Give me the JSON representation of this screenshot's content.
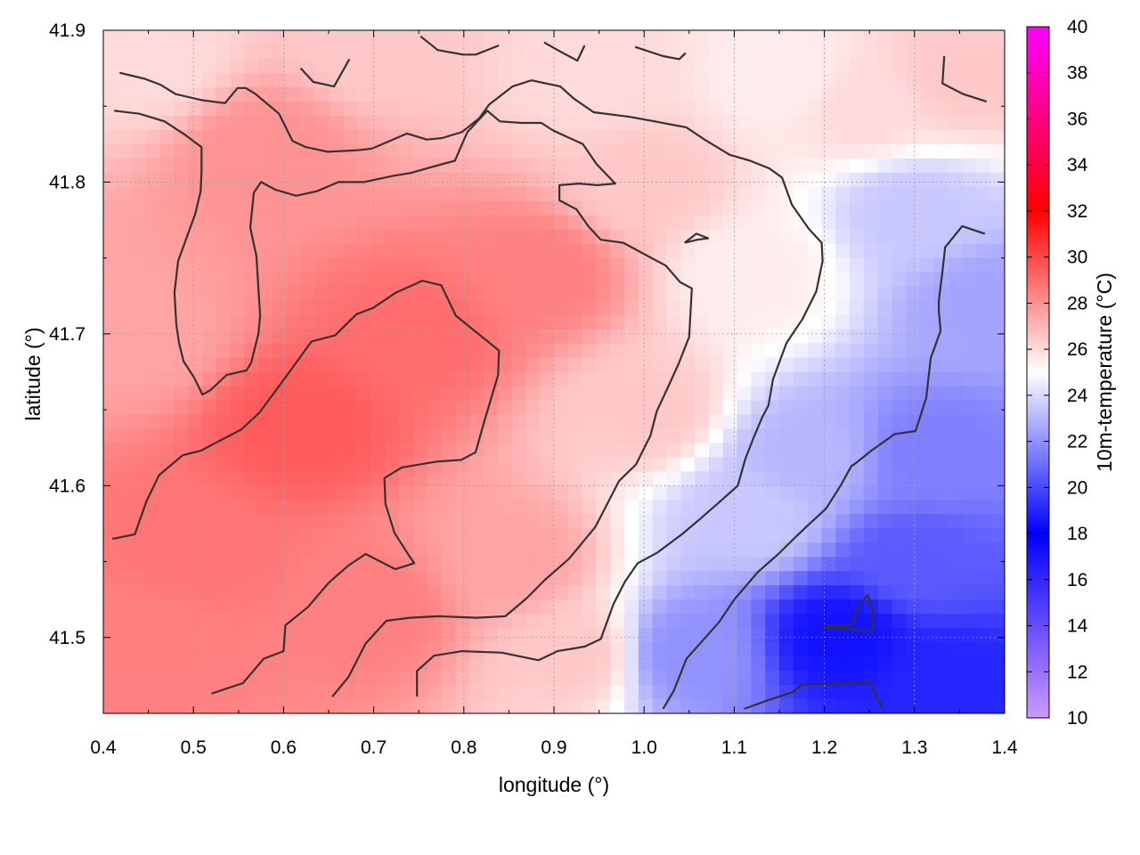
{
  "chart_data": {
    "type": "heatmap",
    "title": "",
    "xlabel": "longitude (°)",
    "ylabel": "latitude (°)",
    "colorbar_label": "10m-temperature (°C)",
    "xlim": [
      0.4,
      1.4
    ],
    "ylim": [
      41.45,
      41.9
    ],
    "x_ticks": [
      "0.4",
      "0.5",
      "0.6",
      "0.7",
      "0.8",
      "0.9",
      "1.0",
      "1.1",
      "1.2",
      "1.3",
      "1.4"
    ],
    "y_ticks": [
      "41.5",
      "41.6",
      "41.7",
      "41.8",
      "41.9"
    ],
    "colorbar_range": [
      10,
      40
    ],
    "colorbar_ticks": [
      "10",
      "12",
      "14",
      "16",
      "18",
      "20",
      "22",
      "24",
      "26",
      "28",
      "30",
      "32",
      "34",
      "36",
      "38",
      "40"
    ],
    "grid": true,
    "colormap_stops": [
      {
        "t": 10,
        "color": "#cc99ff"
      },
      {
        "t": 18,
        "color": "#0000ff"
      },
      {
        "t": 25,
        "color": "#ffffff"
      },
      {
        "t": 32,
        "color": "#ff0000"
      },
      {
        "t": 40,
        "color": "#ff00ff"
      }
    ],
    "field_anchors": [
      {
        "x": 0.62,
        "y": 41.64,
        "t": 29.5
      },
      {
        "x": 0.5,
        "y": 41.56,
        "t": 28.8
      },
      {
        "x": 0.75,
        "y": 41.7,
        "t": 29.0
      },
      {
        "x": 0.88,
        "y": 41.74,
        "t": 28.5
      },
      {
        "x": 0.58,
        "y": 41.82,
        "t": 28.0
      },
      {
        "x": 0.7,
        "y": 41.52,
        "t": 28.5
      },
      {
        "x": 0.45,
        "y": 41.5,
        "t": 28.5
      },
      {
        "x": 0.85,
        "y": 41.55,
        "t": 27.5
      },
      {
        "x": 0.92,
        "y": 41.49,
        "t": 26.5
      },
      {
        "x": 0.44,
        "y": 41.7,
        "t": 27.5
      },
      {
        "x": 0.45,
        "y": 41.88,
        "t": 26.0
      },
      {
        "x": 0.7,
        "y": 41.89,
        "t": 26.5
      },
      {
        "x": 0.95,
        "y": 41.87,
        "t": 26.0
      },
      {
        "x": 1.0,
        "y": 41.8,
        "t": 26.5
      },
      {
        "x": 1.0,
        "y": 41.65,
        "t": 26.5
      },
      {
        "x": 1.05,
        "y": 41.49,
        "t": 22.0
      },
      {
        "x": 1.12,
        "y": 41.58,
        "t": 23.5
      },
      {
        "x": 1.12,
        "y": 41.74,
        "t": 25.5
      },
      {
        "x": 1.15,
        "y": 41.87,
        "t": 25.5
      },
      {
        "x": 1.25,
        "y": 41.85,
        "t": 26.0
      },
      {
        "x": 1.35,
        "y": 41.87,
        "t": 26.5
      },
      {
        "x": 1.3,
        "y": 41.78,
        "t": 23.5
      },
      {
        "x": 1.38,
        "y": 41.72,
        "t": 22.5
      },
      {
        "x": 1.32,
        "y": 41.62,
        "t": 21.5
      },
      {
        "x": 1.22,
        "y": 41.5,
        "t": 18.5
      },
      {
        "x": 1.33,
        "y": 41.47,
        "t": 19.0
      },
      {
        "x": 1.18,
        "y": 41.62,
        "t": 23.0
      },
      {
        "x": 1.3,
        "y": 41.55,
        "t": 20.5
      }
    ],
    "contour_lines": [
      [
        [
          0.41,
          41.565
        ],
        [
          0.435,
          41.568
        ],
        [
          0.448,
          41.59
        ],
        [
          0.462,
          41.607
        ],
        [
          0.488,
          41.62
        ],
        [
          0.508,
          41.623
        ],
        [
          0.553,
          41.637
        ],
        [
          0.573,
          41.648
        ],
        [
          0.598,
          41.668
        ],
        [
          0.631,
          41.695
        ],
        [
          0.657,
          41.699
        ],
        [
          0.681,
          41.713
        ],
        [
          0.699,
          41.717
        ],
        [
          0.724,
          41.727
        ],
        [
          0.754,
          41.735
        ],
        [
          0.775,
          41.732
        ],
        [
          0.791,
          41.712
        ],
        [
          0.839,
          41.689
        ],
        [
          0.838,
          41.673
        ],
        [
          0.823,
          41.643
        ],
        [
          0.813,
          41.622
        ],
        [
          0.797,
          41.617
        ],
        [
          0.771,
          41.616
        ],
        [
          0.731,
          41.612
        ],
        [
          0.712,
          41.605
        ],
        [
          0.713,
          41.588
        ],
        [
          0.723,
          41.569
        ],
        [
          0.739,
          41.554
        ],
        [
          0.745,
          41.549
        ],
        [
          0.724,
          41.545
        ],
        [
          0.691,
          41.555
        ],
        [
          0.671,
          41.547
        ],
        [
          0.65,
          41.536
        ],
        [
          0.627,
          41.52
        ],
        [
          0.602,
          41.508
        ],
        [
          0.6,
          41.491
        ],
        [
          0.578,
          41.486
        ],
        [
          0.555,
          41.47
        ],
        [
          0.52,
          41.463
        ]
      ],
      [
        [
          0.654,
          41.461
        ],
        [
          0.672,
          41.474
        ],
        [
          0.691,
          41.496
        ],
        [
          0.714,
          41.511
        ],
        [
          0.74,
          41.513
        ],
        [
          0.772,
          41.514
        ],
        [
          0.814,
          41.513
        ],
        [
          0.846,
          41.514
        ],
        [
          0.87,
          41.526
        ],
        [
          0.89,
          41.538
        ],
        [
          0.917,
          41.552
        ],
        [
          0.946,
          41.573
        ],
        [
          0.96,
          41.589
        ],
        [
          0.972,
          41.603
        ],
        [
          0.991,
          41.614
        ],
        [
          1.007,
          41.633
        ],
        [
          1.014,
          41.649
        ],
        [
          1.025,
          41.663
        ],
        [
          1.038,
          41.68
        ],
        [
          1.05,
          41.698
        ],
        [
          1.053,
          41.73
        ],
        [
          1.04,
          41.734
        ],
        [
          1.024,
          41.745
        ],
        [
          1.005,
          41.751
        ],
        [
          0.977,
          41.76
        ],
        [
          0.952,
          41.762
        ],
        [
          0.938,
          41.771
        ],
        [
          0.925,
          41.782
        ],
        [
          0.906,
          41.788
        ],
        [
          0.906,
          41.798
        ],
        [
          0.928,
          41.799
        ],
        [
          0.948,
          41.798
        ],
        [
          0.968,
          41.799
        ],
        [
          0.947,
          41.812
        ],
        [
          0.932,
          41.825
        ],
        [
          0.899,
          41.834
        ],
        [
          0.886,
          41.839
        ],
        [
          0.864,
          41.839
        ],
        [
          0.84,
          41.84
        ],
        [
          0.826,
          41.847
        ],
        [
          0.804,
          41.833
        ],
        [
          0.79,
          41.814
        ],
        [
          0.777,
          41.812
        ],
        [
          0.741,
          41.806
        ],
        [
          0.721,
          41.804
        ],
        [
          0.689,
          41.8
        ],
        [
          0.661,
          41.8
        ],
        [
          0.637,
          41.794
        ],
        [
          0.614,
          41.791
        ],
        [
          0.591,
          41.795
        ],
        [
          0.575,
          41.8
        ],
        [
          0.567,
          41.793
        ],
        [
          0.563,
          41.77
        ],
        [
          0.57,
          41.751
        ],
        [
          0.572,
          41.73
        ],
        [
          0.574,
          41.712
        ],
        [
          0.572,
          41.7
        ],
        [
          0.564,
          41.681
        ],
        [
          0.559,
          41.676
        ],
        [
          0.537,
          41.673
        ],
        [
          0.519,
          41.663
        ],
        [
          0.51,
          41.66
        ],
        [
          0.501,
          41.671
        ],
        [
          0.489,
          41.682
        ],
        [
          0.484,
          41.694
        ],
        [
          0.481,
          41.706
        ],
        [
          0.479,
          41.727
        ],
        [
          0.483,
          41.748
        ],
        [
          0.502,
          41.779
        ],
        [
          0.508,
          41.794
        ],
        [
          0.509,
          41.808
        ],
        [
          0.509,
          41.823
        ],
        [
          0.491,
          41.831
        ],
        [
          0.468,
          41.84
        ],
        [
          0.44,
          41.845
        ],
        [
          0.412,
          41.847
        ]
      ],
      [
        [
          0.748,
          41.461
        ],
        [
          0.748,
          41.478
        ],
        [
          0.767,
          41.488
        ],
        [
          0.798,
          41.491
        ],
        [
          0.842,
          41.49
        ],
        [
          0.883,
          41.485
        ],
        [
          0.904,
          41.491
        ],
        [
          0.934,
          41.494
        ],
        [
          0.952,
          41.499
        ],
        [
          0.966,
          41.522
        ],
        [
          0.979,
          41.537
        ],
        [
          0.993,
          41.549
        ],
        [
          1.015,
          41.556
        ],
        [
          1.042,
          41.568
        ],
        [
          1.062,
          41.578
        ],
        [
          1.087,
          41.591
        ],
        [
          1.104,
          41.6
        ],
        [
          1.112,
          41.617
        ],
        [
          1.121,
          41.631
        ],
        [
          1.131,
          41.645
        ],
        [
          1.138,
          41.653
        ],
        [
          1.143,
          41.67
        ],
        [
          1.158,
          41.694
        ],
        [
          1.176,
          41.71
        ],
        [
          1.191,
          41.728
        ],
        [
          1.198,
          41.748
        ],
        [
          1.197,
          41.76
        ],
        [
          1.183,
          41.769
        ],
        [
          1.164,
          41.785
        ],
        [
          1.153,
          41.803
        ],
        [
          1.139,
          41.809
        ],
        [
          1.118,
          41.814
        ],
        [
          1.095,
          41.818
        ],
        [
          1.067,
          41.828
        ],
        [
          1.047,
          41.836
        ],
        [
          1.012,
          41.84
        ],
        [
          0.984,
          41.843
        ],
        [
          0.944,
          41.846
        ],
        [
          0.922,
          41.855
        ],
        [
          0.907,
          41.863
        ],
        [
          0.875,
          41.867
        ],
        [
          0.854,
          41.863
        ],
        [
          0.828,
          41.851
        ],
        [
          0.817,
          41.842
        ],
        [
          0.798,
          41.833
        ],
        [
          0.776,
          41.829
        ],
        [
          0.759,
          41.828
        ],
        [
          0.737,
          41.832
        ],
        [
          0.698,
          41.822
        ],
        [
          0.682,
          41.821
        ],
        [
          0.649,
          41.82
        ],
        [
          0.625,
          41.823
        ],
        [
          0.61,
          41.827
        ],
        [
          0.595,
          41.845
        ],
        [
          0.569,
          41.858
        ],
        [
          0.558,
          41.862
        ],
        [
          0.549,
          41.862
        ],
        [
          0.535,
          41.852
        ],
        [
          0.509,
          41.854
        ],
        [
          0.48,
          41.858
        ],
        [
          0.464,
          41.864
        ],
        [
          0.446,
          41.868
        ],
        [
          0.418,
          41.872
        ]
      ],
      [
        [
          1.021,
          41.453
        ],
        [
          1.033,
          41.465
        ],
        [
          1.047,
          41.486
        ],
        [
          1.068,
          41.5
        ],
        [
          1.083,
          41.51
        ],
        [
          1.1,
          41.525
        ],
        [
          1.126,
          41.543
        ],
        [
          1.149,
          41.555
        ],
        [
          1.166,
          41.565
        ],
        [
          1.18,
          41.573
        ],
        [
          1.202,
          41.585
        ],
        [
          1.218,
          41.6
        ],
        [
          1.23,
          41.613
        ],
        [
          1.233,
          41.614
        ],
        [
          1.252,
          41.623
        ],
        [
          1.278,
          41.634
        ],
        [
          1.301,
          41.636
        ],
        [
          1.305,
          41.643
        ],
        [
          1.313,
          41.658
        ],
        [
          1.318,
          41.684
        ],
        [
          1.329,
          41.702
        ],
        [
          1.327,
          41.715
        ],
        [
          1.327,
          41.722
        ],
        [
          1.331,
          41.741
        ],
        [
          1.334,
          41.757
        ],
        [
          1.353,
          41.771
        ],
        [
          1.378,
          41.766
        ]
      ],
      [
        [
          1.111,
          41.453
        ],
        [
          1.139,
          41.459
        ],
        [
          1.165,
          41.464
        ],
        [
          1.175,
          41.469
        ],
        [
          1.224,
          41.47
        ],
        [
          1.25,
          41.471
        ],
        [
          1.265,
          41.453
        ]
      ],
      [
        [
          1.199,
          41.507
        ],
        [
          1.223,
          41.506
        ],
        [
          1.253,
          41.504
        ],
        [
          1.254,
          41.518
        ],
        [
          1.248,
          41.528
        ],
        [
          1.239,
          41.522
        ],
        [
          1.23,
          41.508
        ],
        [
          1.199,
          41.508
        ]
      ],
      [
        [
          1.045,
          41.76
        ],
        [
          1.058,
          41.766
        ],
        [
          1.071,
          41.763
        ],
        [
          1.059,
          41.762
        ],
        [
          1.045,
          41.76
        ]
      ],
      [
        [
          1.333,
          41.883
        ],
        [
          1.331,
          41.865
        ],
        [
          1.354,
          41.858
        ],
        [
          1.38,
          41.853
        ]
      ],
      [
        [
          0.619,
          41.875
        ],
        [
          0.633,
          41.866
        ],
        [
          0.656,
          41.863
        ],
        [
          0.673,
          41.881
        ]
      ],
      [
        [
          0.752,
          41.896
        ],
        [
          0.771,
          41.887
        ],
        [
          0.799,
          41.884
        ],
        [
          0.813,
          41.884
        ],
        [
          0.839,
          41.89
        ]
      ],
      [
        [
          0.889,
          41.892
        ],
        [
          0.907,
          41.886
        ],
        [
          0.926,
          41.88
        ],
        [
          0.934,
          41.89
        ]
      ],
      [
        [
          0.99,
          41.889
        ],
        [
          1.021,
          41.883
        ],
        [
          1.039,
          41.881
        ],
        [
          1.046,
          41.885
        ]
      ]
    ]
  }
}
